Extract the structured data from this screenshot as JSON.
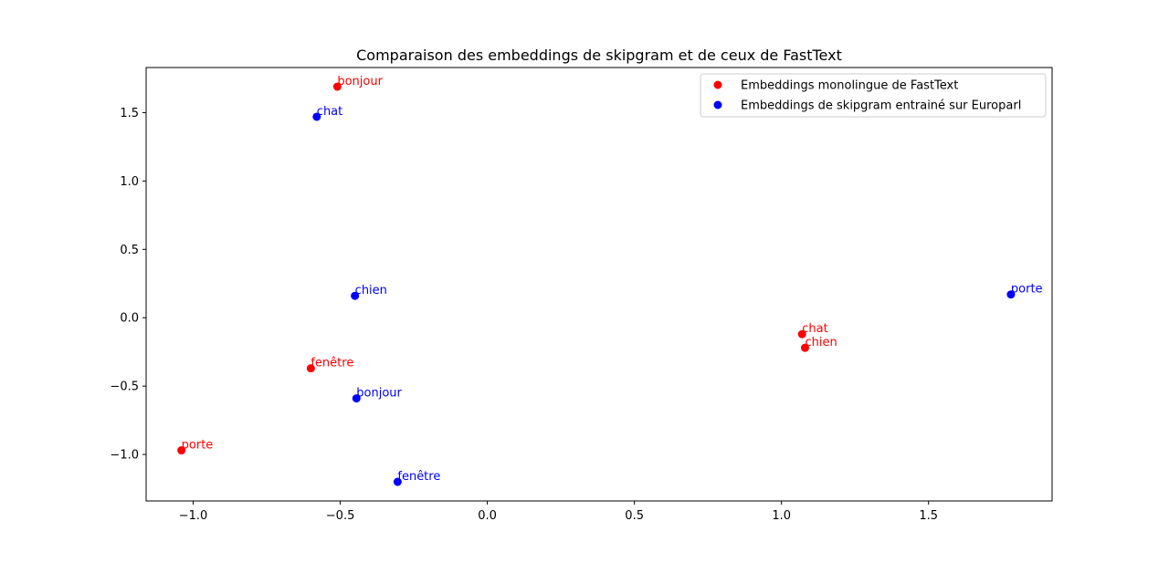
{
  "chart_data": {
    "type": "scatter",
    "title": "Comparaison des embeddings de skipgram et de ceux de FastText",
    "xlabel": "",
    "ylabel": "",
    "xlim": [
      -1.16,
      1.92
    ],
    "ylim": [
      -1.34,
      1.83
    ],
    "xticks": [
      -1.0,
      -0.5,
      0.0,
      0.5,
      1.0,
      1.5
    ],
    "xtick_labels": [
      "−1.0",
      "−0.5",
      "0.0",
      "0.5",
      "1.0",
      "1.5"
    ],
    "yticks": [
      -1.0,
      -0.5,
      0.0,
      0.5,
      1.0,
      1.5
    ],
    "ytick_labels": [
      "−1.0",
      "−0.5",
      "0.0",
      "0.5",
      "1.0",
      "1.5"
    ],
    "grid": false,
    "legend_position": "top-right",
    "series": [
      {
        "name": "Embeddings monolingue de FastText",
        "color": "#ff0000",
        "points": [
          {
            "label": "bonjour",
            "x": -0.51,
            "y": 1.69
          },
          {
            "label": "fenêtre",
            "x": -0.6,
            "y": -0.37
          },
          {
            "label": "porte",
            "x": -1.04,
            "y": -0.97
          },
          {
            "label": "chat",
            "x": 1.07,
            "y": -0.12
          },
          {
            "label": "chien",
            "x": 1.08,
            "y": -0.22
          }
        ]
      },
      {
        "name": "Embeddings de skipgram entrainé sur Europarl",
        "color": "#0000ff",
        "points": [
          {
            "label": "chat",
            "x": -0.58,
            "y": 1.47
          },
          {
            "label": "chien",
            "x": -0.45,
            "y": 0.16
          },
          {
            "label": "bonjour",
            "x": -0.445,
            "y": -0.59
          },
          {
            "label": "fenêtre",
            "x": -0.305,
            "y": -1.2
          },
          {
            "label": "porte",
            "x": 1.78,
            "y": 0.17
          }
        ]
      }
    ]
  }
}
